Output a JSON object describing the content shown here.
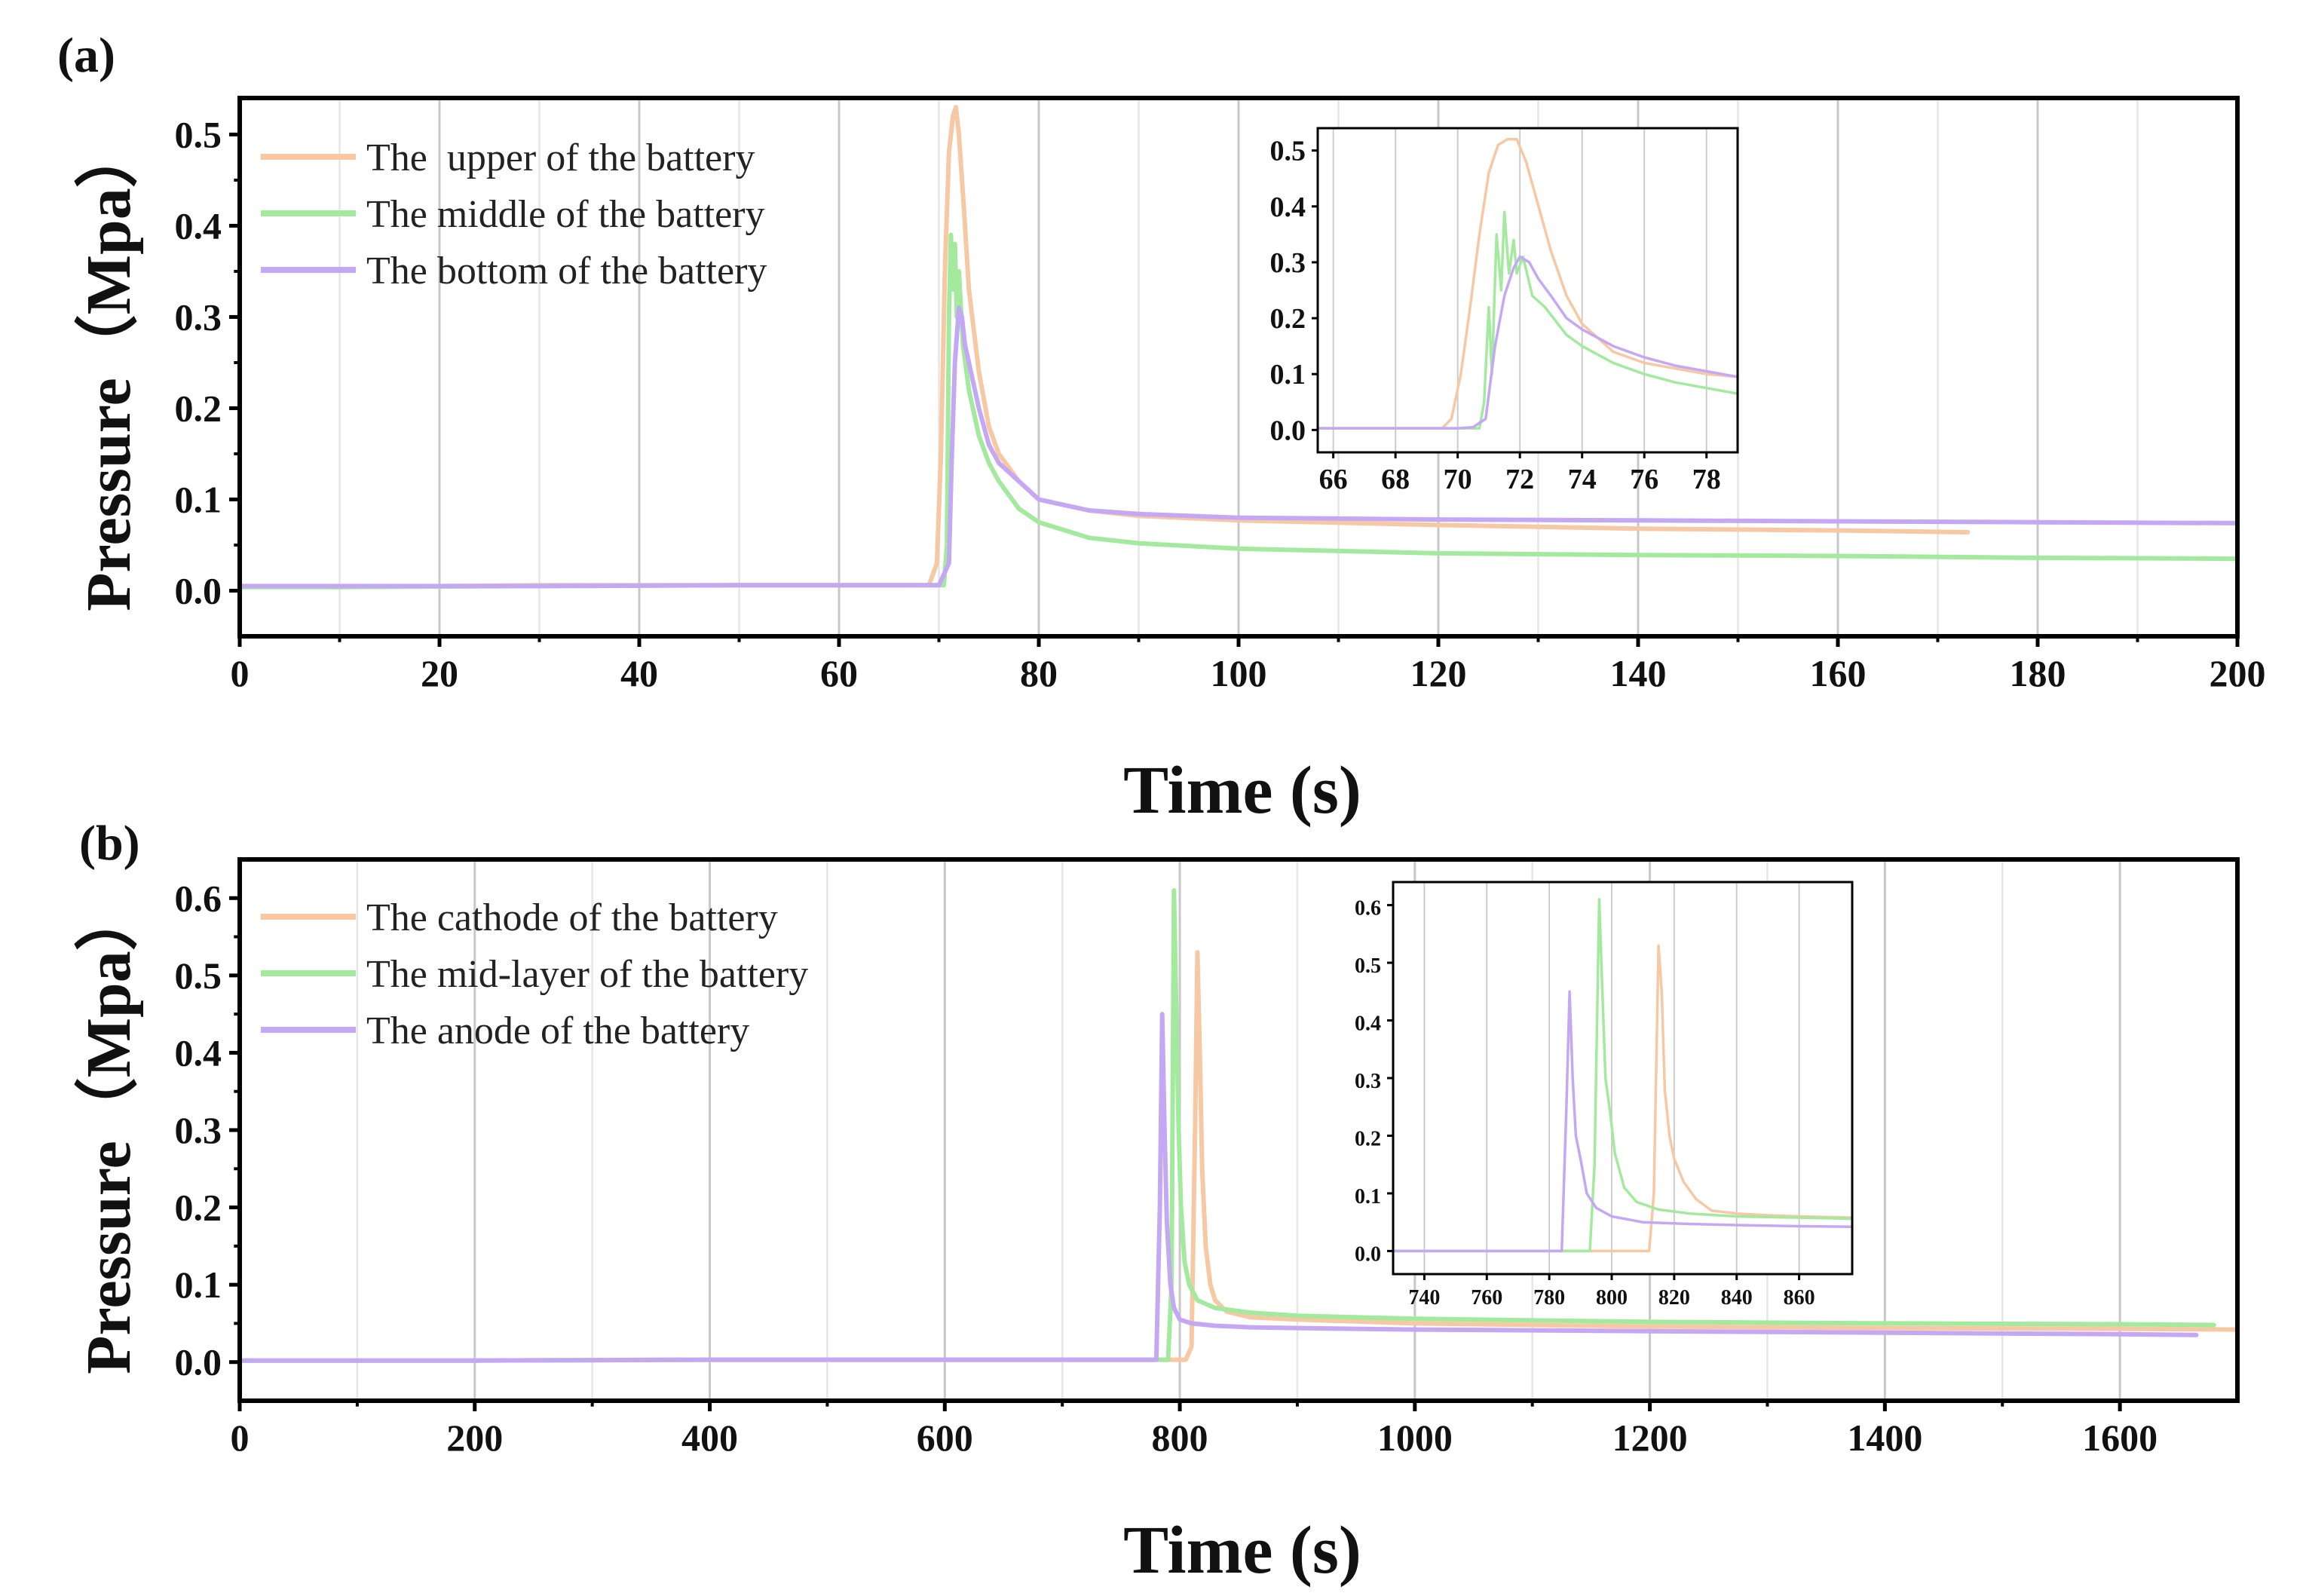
{
  "colors": {
    "orange": "#f7c8a4",
    "green": "#a3ea9e",
    "purple": "#c5a8f4",
    "axis": "#000000",
    "grid": "#c8c8c8"
  },
  "chart_data": [
    {
      "id": "a",
      "panel_label": "(a)",
      "type": "line",
      "xlabel": "Time (s)",
      "ylabel": "Pressure（Mpa）",
      "xlim": [
        0,
        200
      ],
      "ylim": [
        -0.05,
        0.54
      ],
      "xticks": [
        0,
        20,
        40,
        60,
        80,
        100,
        120,
        140,
        160,
        180,
        200
      ],
      "yticks": [
        0.0,
        0.1,
        0.2,
        0.3,
        0.4,
        0.5
      ],
      "yticklabels": [
        "0.0",
        "0.1",
        "0.2",
        "0.3",
        "0.4",
        "0.5"
      ],
      "grid": "vertical",
      "legend_position": "top-left",
      "series": [
        {
          "name": "The  upper of the battery",
          "color_key": "orange",
          "x": [
            0,
            10,
            30,
            50,
            69,
            69.8,
            70.2,
            70.6,
            71.0,
            71.4,
            71.7,
            72.0,
            72.5,
            73,
            74,
            75,
            76,
            78,
            80,
            85,
            90,
            100,
            120,
            140,
            160,
            173
          ],
          "y": [
            0.005,
            0.004,
            0.006,
            0.006,
            0.006,
            0.03,
            0.15,
            0.35,
            0.48,
            0.52,
            0.53,
            0.5,
            0.42,
            0.33,
            0.24,
            0.18,
            0.15,
            0.12,
            0.1,
            0.088,
            0.082,
            0.077,
            0.072,
            0.068,
            0.066,
            0.064
          ]
        },
        {
          "name": "The middle of the battery",
          "color_key": "green",
          "x": [
            0,
            10,
            30,
            50,
            70.5,
            70.8,
            71.0,
            71.2,
            71.4,
            71.6,
            71.8,
            72.0,
            72.4,
            73,
            74,
            75,
            76,
            78,
            80,
            85,
            90,
            100,
            120,
            140,
            160,
            180,
            200
          ],
          "y": [
            0.004,
            0.004,
            0.005,
            0.006,
            0.006,
            0.05,
            0.3,
            0.39,
            0.33,
            0.38,
            0.3,
            0.35,
            0.27,
            0.22,
            0.17,
            0.14,
            0.12,
            0.09,
            0.075,
            0.058,
            0.052,
            0.046,
            0.041,
            0.039,
            0.038,
            0.036,
            0.035
          ]
        },
        {
          "name": "The bottom of the battery",
          "color_key": "purple",
          "x": [
            0,
            10,
            30,
            50,
            70,
            71.0,
            71.3,
            71.6,
            71.8,
            72.0,
            72.3,
            72.6,
            73,
            74,
            75,
            76,
            78,
            80,
            85,
            90,
            100,
            120,
            140,
            160,
            180,
            200
          ],
          "y": [
            0.005,
            0.005,
            0.005,
            0.006,
            0.006,
            0.03,
            0.15,
            0.25,
            0.28,
            0.31,
            0.3,
            0.27,
            0.25,
            0.2,
            0.16,
            0.14,
            0.12,
            0.1,
            0.088,
            0.084,
            0.08,
            0.078,
            0.077,
            0.076,
            0.075,
            0.074
          ]
        }
      ],
      "inset": {
        "xlim": [
          65.5,
          79
        ],
        "ylim": [
          -0.04,
          0.54
        ],
        "xticks": [
          66,
          68,
          70,
          72,
          74,
          76,
          78
        ],
        "yticks": [
          0.0,
          0.1,
          0.2,
          0.3,
          0.4,
          0.5
        ],
        "yticklabels": [
          "0.0",
          "0.1",
          "0.2",
          "0.3",
          "0.4",
          "0.5"
        ],
        "grid": "vertical",
        "series": [
          {
            "color_key": "orange",
            "x": [
              65.5,
              69.5,
              69.8,
              70.1,
              70.4,
              70.7,
              71.0,
              71.3,
              71.6,
              71.9,
              72.2,
              72.5,
              73.0,
              73.5,
              74.0,
              75.0,
              76.0,
              77.0,
              78.0,
              79.0
            ],
            "y": [
              0.003,
              0.003,
              0.02,
              0.1,
              0.22,
              0.35,
              0.46,
              0.51,
              0.52,
              0.52,
              0.48,
              0.42,
              0.32,
              0.24,
              0.19,
              0.14,
              0.12,
              0.11,
              0.1,
              0.095
            ]
          },
          {
            "color_key": "green",
            "x": [
              65.5,
              70.7,
              70.85,
              71.0,
              71.1,
              71.25,
              71.4,
              71.5,
              71.65,
              71.8,
              71.9,
              72.1,
              72.4,
              72.8,
              73.5,
              74.0,
              75.0,
              76.0,
              77.0,
              78.0,
              79.0
            ],
            "y": [
              0.003,
              0.003,
              0.05,
              0.22,
              0.1,
              0.35,
              0.25,
              0.39,
              0.28,
              0.34,
              0.28,
              0.31,
              0.24,
              0.22,
              0.17,
              0.15,
              0.12,
              0.1,
              0.085,
              0.075,
              0.065
            ]
          },
          {
            "color_key": "purple",
            "x": [
              65.5,
              70.0,
              70.5,
              70.9,
              71.2,
              71.5,
              71.8,
              72.0,
              72.3,
              72.6,
              73.0,
              73.5,
              74.0,
              75.0,
              76.0,
              77.0,
              78.0,
              79.0
            ],
            "y": [
              0.003,
              0.003,
              0.005,
              0.02,
              0.15,
              0.24,
              0.29,
              0.31,
              0.3,
              0.27,
              0.24,
              0.2,
              0.18,
              0.15,
              0.13,
              0.115,
              0.105,
              0.095
            ]
          }
        ]
      }
    },
    {
      "id": "b",
      "panel_label": "(b)",
      "type": "line",
      "xlabel": "Time (s)",
      "ylabel": "Pressure（Mpa）",
      "xlim": [
        0,
        1700
      ],
      "ylim": [
        -0.05,
        0.65
      ],
      "xticks": [
        0,
        200,
        400,
        600,
        800,
        1000,
        1200,
        1400,
        1600
      ],
      "yticks": [
        0.0,
        0.1,
        0.2,
        0.3,
        0.4,
        0.5,
        0.6
      ],
      "yticklabels": [
        "0.0",
        "0.1",
        "0.2",
        "0.3",
        "0.4",
        "0.5",
        "0.6"
      ],
      "grid": "vertical",
      "legend_position": "top-left",
      "series": [
        {
          "name": "The cathode of the battery",
          "color_key": "orange",
          "x": [
            0,
            200,
            400,
            600,
            805,
            810,
            813,
            815,
            817,
            819,
            822,
            826,
            830,
            840,
            860,
            900,
            1000,
            1200,
            1400,
            1600,
            1700
          ],
          "y": [
            0.002,
            0.002,
            0.003,
            0.003,
            0.003,
            0.02,
            0.3,
            0.53,
            0.4,
            0.25,
            0.15,
            0.1,
            0.08,
            0.065,
            0.058,
            0.055,
            0.05,
            0.046,
            0.044,
            0.043,
            0.042
          ]
        },
        {
          "name": "The mid-layer of the battery",
          "color_key": "green",
          "x": [
            0,
            200,
            400,
            600,
            790,
            793,
            795,
            797,
            799,
            801,
            804,
            808,
            815,
            830,
            860,
            900,
            1000,
            1200,
            1400,
            1600,
            1680
          ],
          "y": [
            0.002,
            0.002,
            0.003,
            0.003,
            0.003,
            0.1,
            0.61,
            0.45,
            0.3,
            0.2,
            0.13,
            0.1,
            0.08,
            0.07,
            0.064,
            0.06,
            0.056,
            0.052,
            0.05,
            0.049,
            0.048
          ]
        },
        {
          "name": "The anode of the battery",
          "color_key": "purple",
          "x": [
            0,
            200,
            400,
            600,
            780,
            783,
            785,
            787,
            789,
            792,
            795,
            800,
            810,
            830,
            860,
            900,
            1000,
            1200,
            1400,
            1600,
            1665
          ],
          "y": [
            0.002,
            0.002,
            0.003,
            0.003,
            0.003,
            0.2,
            0.45,
            0.3,
            0.18,
            0.1,
            0.07,
            0.055,
            0.05,
            0.047,
            0.045,
            0.044,
            0.042,
            0.04,
            0.038,
            0.036,
            0.035
          ]
        }
      ],
      "inset": {
        "xlim": [
          730,
          877
        ],
        "ylim": [
          -0.04,
          0.64
        ],
        "xticks": [
          740,
          760,
          780,
          800,
          820,
          840,
          860
        ],
        "yticks": [
          0.0,
          0.1,
          0.2,
          0.3,
          0.4,
          0.5,
          0.6
        ],
        "yticklabels": [
          "0.0",
          "0.1",
          "0.2",
          "0.3",
          "0.4",
          "0.5",
          "0.6"
        ],
        "grid": "vertical",
        "series": [
          {
            "color_key": "orange",
            "x": [
              730,
              812,
              813.5,
              815,
              816,
              817,
              818.5,
              820,
              823,
              827,
              832,
              840,
              850,
              860,
              877
            ],
            "y": [
              0.0,
              0.0,
              0.1,
              0.53,
              0.45,
              0.28,
              0.2,
              0.16,
              0.12,
              0.09,
              0.07,
              0.065,
              0.062,
              0.06,
              0.058
            ]
          },
          {
            "color_key": "green",
            "x": [
              730,
              793,
              794.5,
              796,
              797,
              798,
              799.5,
              801,
              804,
              808,
              815,
              825,
              840,
              860,
              877
            ],
            "y": [
              0.0,
              0.0,
              0.15,
              0.61,
              0.45,
              0.3,
              0.24,
              0.17,
              0.11,
              0.085,
              0.072,
              0.065,
              0.06,
              0.058,
              0.056
            ]
          },
          {
            "color_key": "purple",
            "x": [
              730,
              784,
              785.5,
              786.5,
              787.5,
              788.5,
              790,
              792,
              795,
              800,
              810,
              825,
              840,
              860,
              877
            ],
            "y": [
              0.0,
              0.0,
              0.25,
              0.45,
              0.3,
              0.2,
              0.16,
              0.1,
              0.075,
              0.06,
              0.05,
              0.047,
              0.045,
              0.043,
              0.042
            ]
          }
        ]
      }
    }
  ]
}
